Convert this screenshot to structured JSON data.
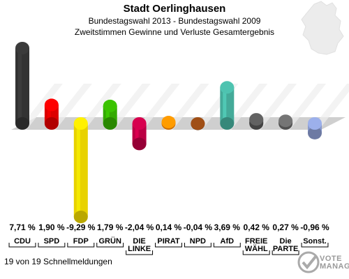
{
  "header": {
    "title": "Stadt Oerlinghausen",
    "subtitle1": "Bundestagswahl 2013 - Bundestagswahl 2009",
    "subtitle2": "Zweitstimmen Gewinne und Verluste Gesamtergebnis"
  },
  "footer": {
    "status": "19 von 19 Schnellmeldungen"
  },
  "logo": {
    "line1": "VOTE",
    "line2": "MANAGER"
  },
  "chart_data": {
    "type": "bar",
    "categories": [
      "CDU",
      "SPD",
      "FDP",
      "GRÜNE",
      "DIE LINKE",
      "PIRATEN",
      "NPD",
      "AfD",
      "FREIE WÄHLER",
      "Die PARTEI",
      "Sonst."
    ],
    "category_labels": [
      [
        "CDU"
      ],
      [
        "SPD"
      ],
      [
        "FDP"
      ],
      [
        "GRÜN"
      ],
      [
        "DIE",
        "LINKE"
      ],
      [
        "PIRAT"
      ],
      [
        "NPD"
      ],
      [
        "AfD"
      ],
      [
        "FREIE",
        "WÄHL"
      ],
      [
        "Die",
        "PARTE"
      ],
      [
        "Sonst."
      ]
    ],
    "values": [
      7.71,
      1.9,
      -9.29,
      1.79,
      -2.04,
      0.14,
      -0.04,
      3.69,
      0.42,
      0.27,
      -0.96
    ],
    "value_labels": [
      "7,71 %",
      "1,90 %",
      "-9,29 %",
      "1,79 %",
      "-2,04 %",
      "0,14 %",
      "-0,04 %",
      "3,69 %",
      "0,42 %",
      "0,27 %",
      "-0,96 %"
    ],
    "colors": [
      "#333333",
      "#dd0000",
      "#e8d200",
      "#33aa00",
      "#bb0044",
      "#ff8800",
      "#8b4513",
      "#44aa99",
      "#555555",
      "#666666",
      "#8899cc"
    ],
    "ylim": [
      -9.29,
      7.71
    ]
  }
}
